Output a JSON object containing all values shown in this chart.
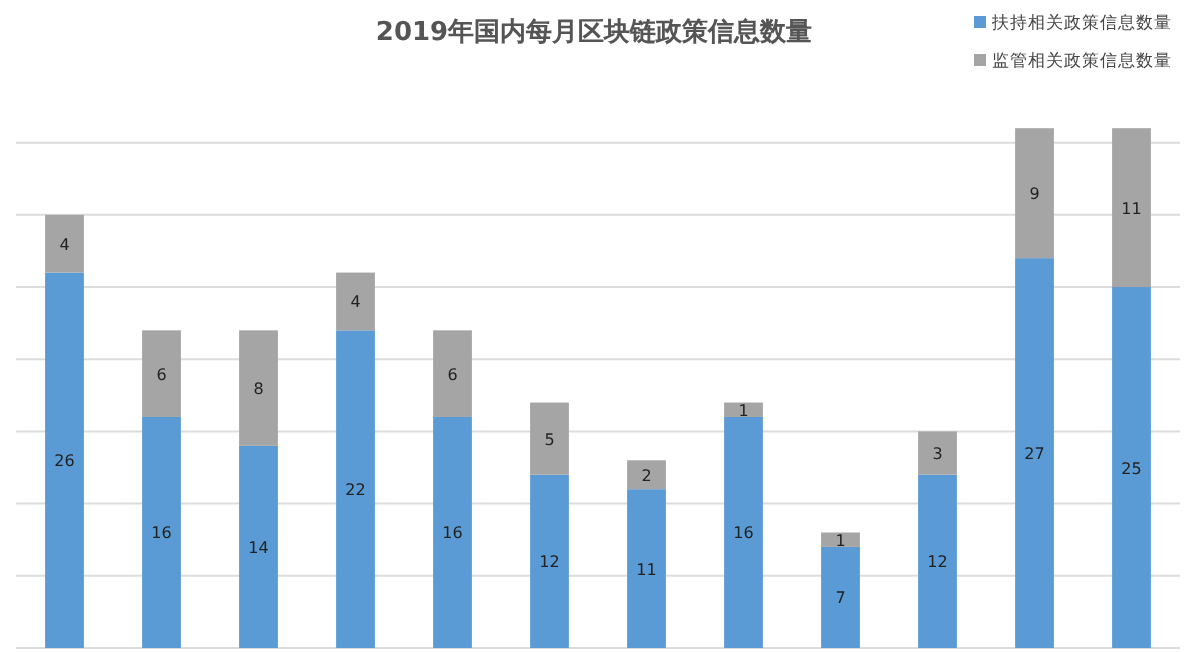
{
  "chart_data": {
    "type": "bar",
    "title": "2019年国内每月区块链政策信息数量",
    "categories": [
      null,
      null,
      null,
      null,
      null,
      null,
      null,
      null,
      null,
      null,
      null,
      null
    ],
    "stacked": true,
    "data_labels": true,
    "legend": "top right",
    "grid": "y",
    "ylim": [
      0,
      41
    ],
    "yticks": [
      {
        "value": 0,
        "label": null
      },
      {
        "value": 5,
        "label": null
      },
      {
        "value": 10,
        "label": null
      },
      {
        "value": 15,
        "label": null
      },
      {
        "value": 20,
        "label": null
      },
      {
        "value": 25,
        "label": null
      },
      {
        "value": 30,
        "label": null
      },
      {
        "value": 35,
        "label": null
      }
    ],
    "series": [
      {
        "name": "扶持相关政策信息数量",
        "color": "#5b9bd5",
        "values": [
          26,
          16,
          14,
          22,
          16,
          12,
          11,
          16,
          7,
          12,
          27,
          25
        ]
      },
      {
        "name": "监管相关政策信息数量",
        "color": "#a5a5a5",
        "values": [
          4,
          6,
          8,
          4,
          6,
          5,
          2,
          1,
          1,
          3,
          9,
          11
        ]
      }
    ]
  }
}
